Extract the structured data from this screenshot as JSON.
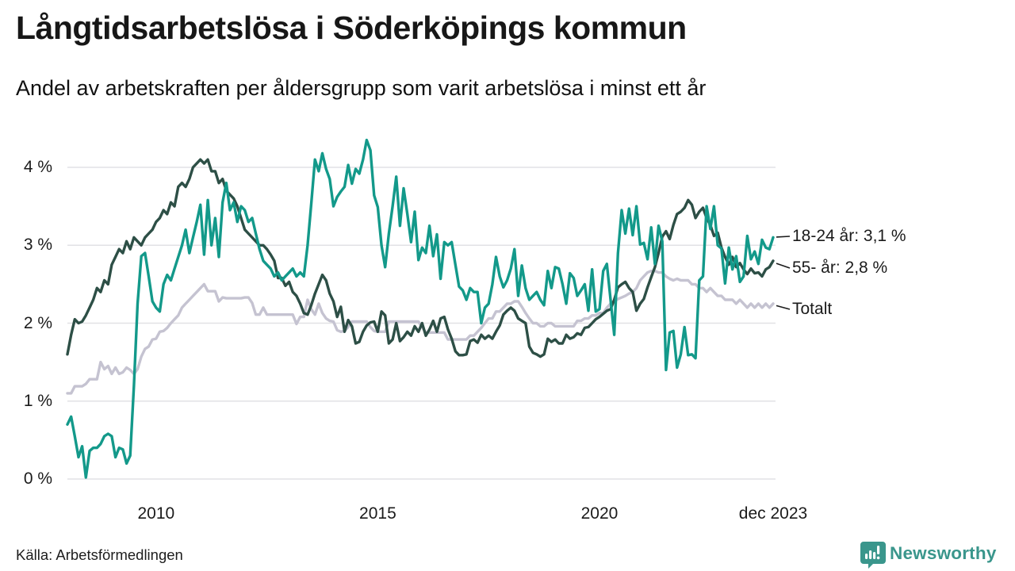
{
  "header": {
    "title": "Långtidsarbetslösa i Söderköpings kommun",
    "subtitle": "Andel av arbetskraften per åldersgrupp som varit arbetslösa i minst ett år"
  },
  "footer": {
    "source": "Källa: Arbetsförmedlingen",
    "brand": "Newsworthy"
  },
  "colors": {
    "series_18_24": "#13998a",
    "series_55": "#2d4f46",
    "series_total": "#c5c3d1",
    "gridline": "#e2e2e5",
    "text": "#1b1b1b",
    "brand_teal": "#3a968c"
  },
  "chart_data": {
    "type": "line",
    "title": "Långtidsarbetslösa i Söderköpings kommun",
    "subtitle": "Andel av arbetskraften per åldersgrupp som varit arbetslösa i minst ett år",
    "x_start": "2008-01",
    "x_end": "2023-12",
    "x_interval": "monthly",
    "grid": "horizontal",
    "legend_position": "right-end-labels",
    "ylim": [
      0,
      4.4
    ],
    "y_tick_values": [
      0,
      1,
      2,
      3,
      4
    ],
    "y_tick_labels": [
      "0 %",
      "1 %",
      "2 %",
      "3 %",
      "4 %"
    ],
    "x_tick_labels": [
      "2010",
      "2015",
      "2020",
      "dec 2023"
    ],
    "x_tick_months": [
      24,
      84,
      144,
      191
    ],
    "series": [
      {
        "name": "Totalt",
        "end_label": "Totalt",
        "color": "#c5c3d1",
        "values": [
          1.1,
          1.1,
          1.19,
          1.19,
          1.19,
          1.22,
          1.28,
          1.28,
          1.28,
          1.5,
          1.41,
          1.45,
          1.35,
          1.43,
          1.35,
          1.37,
          1.43,
          1.4,
          1.35,
          1.41,
          1.57,
          1.67,
          1.7,
          1.79,
          1.8,
          1.89,
          1.9,
          1.94,
          2.0,
          2.05,
          2.1,
          2.2,
          2.25,
          2.3,
          2.35,
          2.4,
          2.45,
          2.5,
          2.41,
          2.41,
          2.41,
          2.28,
          2.33,
          2.32,
          2.32,
          2.32,
          2.32,
          2.32,
          2.33,
          2.33,
          2.26,
          2.11,
          2.11,
          2.2,
          2.11,
          2.11,
          2.11,
          2.11,
          2.11,
          2.11,
          2.11,
          2.11,
          1.99,
          2.08,
          2.08,
          2.3,
          2.18,
          2.11,
          2.25,
          2.13,
          2.06,
          2.03,
          2.02,
          1.91,
          1.89,
          1.9,
          1.95,
          2.02,
          2.02,
          2.02,
          2.02,
          2.02,
          1.95,
          1.9,
          1.89,
          1.89,
          1.89,
          2.02,
          2.02,
          2.02,
          2.02,
          2.02,
          2.02,
          2.02,
          2.02,
          2.02,
          1.95,
          1.88,
          1.88,
          1.88,
          1.88,
          1.88,
          1.88,
          1.79,
          1.79,
          1.79,
          1.79,
          1.79,
          1.79,
          1.84,
          1.84,
          1.89,
          1.94,
          2.0,
          2.06,
          2.06,
          2.15,
          2.15,
          2.2,
          2.25,
          2.25,
          2.28,
          2.28,
          2.21,
          2.13,
          2.06,
          2.0,
          2.0,
          1.96,
          1.96,
          2.0,
          2.0,
          1.96,
          1.96,
          1.96,
          1.96,
          1.96,
          1.96,
          2.03,
          2.03,
          2.06,
          2.06,
          2.1,
          2.1,
          2.13,
          2.13,
          2.2,
          2.25,
          2.28,
          2.31,
          2.33,
          2.35,
          2.38,
          2.4,
          2.45,
          2.55,
          2.6,
          2.65,
          2.67,
          2.67,
          2.65,
          2.65,
          2.6,
          2.57,
          2.55,
          2.57,
          2.55,
          2.55,
          2.55,
          2.5,
          2.5,
          2.45,
          2.45,
          2.4,
          2.45,
          2.4,
          2.35,
          2.35,
          2.3,
          2.3,
          2.3,
          2.25,
          2.3,
          2.25,
          2.2,
          2.25,
          2.2,
          2.25,
          2.2,
          2.25,
          2.2,
          2.25
        ]
      },
      {
        "name": "55- år",
        "end_label": "55- år: 2,8 %",
        "color": "#2d4f46",
        "values": [
          1.6,
          1.85,
          2.05,
          2.0,
          2.02,
          2.1,
          2.2,
          2.3,
          2.45,
          2.4,
          2.55,
          2.5,
          2.75,
          2.85,
          2.95,
          2.9,
          3.05,
          2.95,
          3.1,
          3.05,
          3.0,
          3.1,
          3.15,
          3.2,
          3.3,
          3.35,
          3.45,
          3.4,
          3.55,
          3.5,
          3.75,
          3.8,
          3.75,
          3.85,
          4.0,
          4.05,
          4.1,
          4.05,
          4.1,
          3.95,
          3.95,
          3.8,
          3.85,
          3.7,
          3.65,
          3.6,
          3.5,
          3.35,
          3.2,
          3.15,
          3.1,
          3.05,
          3.0,
          3.0,
          2.95,
          2.88,
          2.8,
          2.58,
          2.58,
          2.48,
          2.53,
          2.4,
          2.35,
          2.25,
          2.13,
          2.11,
          2.23,
          2.38,
          2.5,
          2.62,
          2.55,
          2.38,
          2.28,
          2.08,
          2.21,
          1.89,
          2.04,
          1.96,
          1.74,
          1.76,
          1.89,
          1.97,
          2.01,
          2.02,
          1.89,
          2.15,
          2.1,
          1.74,
          1.79,
          2.0,
          1.77,
          1.82,
          1.89,
          1.84,
          1.96,
          1.89,
          2.0,
          1.84,
          1.92,
          2.03,
          1.89,
          2.06,
          2.08,
          1.92,
          1.8,
          1.64,
          1.59,
          1.59,
          1.6,
          1.77,
          1.79,
          1.75,
          1.85,
          1.8,
          1.84,
          1.8,
          1.89,
          1.97,
          2.11,
          2.16,
          2.2,
          2.16,
          2.06,
          2.03,
          2.0,
          1.7,
          1.62,
          1.6,
          1.57,
          1.6,
          1.8,
          1.76,
          1.79,
          1.74,
          1.74,
          1.85,
          1.8,
          1.82,
          1.87,
          1.85,
          1.94,
          1.95,
          2.0,
          2.05,
          2.08,
          2.12,
          2.16,
          2.18,
          2.3,
          2.46,
          2.5,
          2.53,
          2.45,
          2.4,
          2.16,
          2.25,
          2.31,
          2.46,
          2.59,
          2.72,
          2.9,
          3.11,
          3.18,
          3.08,
          3.26,
          3.4,
          3.43,
          3.48,
          3.58,
          3.52,
          3.35,
          3.43,
          3.48,
          3.35,
          3.26,
          3.12,
          3.16,
          2.97,
          2.85,
          2.75,
          2.85,
          2.72,
          2.77,
          2.69,
          2.63,
          2.7,
          2.64,
          2.65,
          2.6,
          2.69,
          2.72,
          2.8
        ]
      },
      {
        "name": "18-24 år",
        "end_label": "18-24 år: 3,1 %",
        "color": "#13998a",
        "values": [
          0.7,
          0.8,
          0.55,
          0.28,
          0.42,
          0.02,
          0.36,
          0.4,
          0.4,
          0.45,
          0.55,
          0.58,
          0.55,
          0.28,
          0.4,
          0.38,
          0.2,
          0.3,
          1.2,
          2.25,
          2.86,
          2.9,
          2.6,
          2.28,
          2.2,
          2.15,
          2.5,
          2.62,
          2.55,
          2.7,
          2.85,
          3.0,
          3.2,
          2.9,
          3.1,
          3.3,
          3.52,
          2.88,
          3.58,
          3.0,
          3.35,
          2.85,
          3.55,
          3.8,
          3.45,
          3.55,
          3.3,
          3.5,
          3.45,
          3.3,
          3.35,
          3.15,
          2.95,
          2.8,
          2.75,
          2.7,
          2.6,
          2.65,
          2.55,
          2.6,
          2.65,
          2.7,
          2.6,
          2.65,
          2.6,
          3.0,
          3.53,
          4.1,
          3.95,
          4.18,
          3.98,
          3.85,
          3.5,
          3.62,
          3.69,
          3.75,
          4.03,
          3.79,
          3.98,
          3.92,
          4.1,
          4.35,
          4.22,
          3.64,
          3.49,
          3.0,
          2.72,
          3.15,
          3.5,
          3.88,
          3.25,
          3.73,
          3.4,
          3.04,
          3.43,
          2.81,
          2.97,
          2.9,
          3.25,
          2.86,
          3.14,
          2.57,
          3.04,
          3.0,
          3.04,
          2.75,
          2.47,
          2.42,
          2.3,
          2.45,
          2.4,
          2.4,
          2.0,
          2.2,
          2.25,
          2.5,
          2.85,
          2.6,
          2.46,
          2.55,
          2.7,
          2.95,
          2.35,
          2.74,
          2.45,
          2.3,
          2.35,
          2.4,
          2.3,
          2.23,
          2.67,
          2.45,
          2.72,
          2.7,
          2.5,
          2.25,
          2.64,
          2.58,
          2.35,
          2.42,
          2.5,
          2.16,
          2.69,
          2.15,
          2.18,
          2.67,
          2.76,
          2.3,
          1.85,
          2.9,
          3.45,
          3.15,
          3.47,
          3.13,
          3.5,
          3.01,
          3.03,
          2.82,
          3.23,
          2.76,
          3.25,
          3.05,
          1.4,
          1.88,
          1.9,
          1.43,
          1.6,
          1.95,
          1.59,
          1.6,
          1.55,
          2.55,
          2.6,
          3.5,
          3.21,
          3.5,
          3.0,
          2.96,
          2.51,
          2.97,
          2.69,
          2.86,
          2.53,
          2.6,
          3.12,
          2.82,
          2.92,
          2.76,
          3.07,
          2.97,
          2.95,
          3.1
        ]
      }
    ]
  }
}
